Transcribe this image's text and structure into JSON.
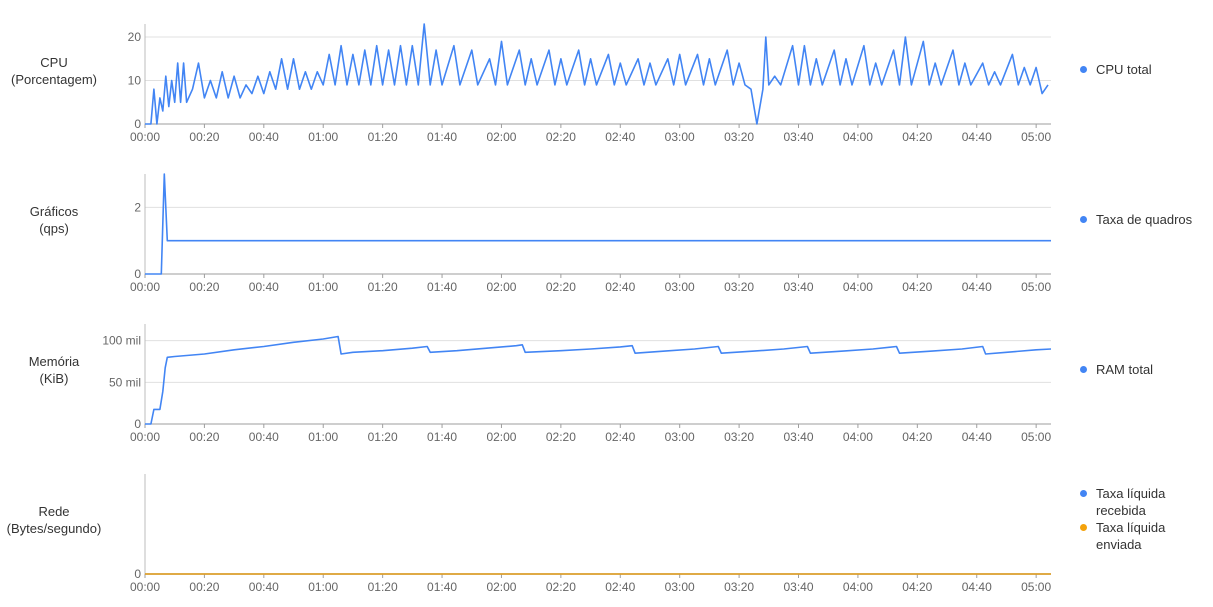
{
  "charts": [
    {
      "key": "cpu",
      "label_lines": [
        "CPU",
        "(Porcentagem)"
      ],
      "legend": [
        {
          "name": "CPU total",
          "color": "#4285f4"
        }
      ],
      "ymax": 23,
      "yticks": [
        {
          "value": 0,
          "label": "0"
        },
        {
          "value": 10,
          "label": "10"
        },
        {
          "value": 20,
          "label": "20"
        }
      ]
    },
    {
      "key": "graphics",
      "label_lines": [
        "Gráficos",
        "(qps)"
      ],
      "legend": [
        {
          "name": "Taxa de quadros",
          "color": "#4285f4"
        }
      ],
      "ymax": 3,
      "yticks": [
        {
          "value": 0,
          "label": "0"
        },
        {
          "value": 2,
          "label": "2"
        }
      ]
    },
    {
      "key": "memory",
      "label_lines": [
        "Memória",
        "(KiB)"
      ],
      "legend": [
        {
          "name": "RAM total",
          "color": "#4285f4"
        }
      ],
      "ymax": 240,
      "yticks": [
        {
          "value": 0,
          "label": "0"
        },
        {
          "value": 100,
          "label": "50 mil"
        },
        {
          "value": 200,
          "label": "100 mil"
        }
      ]
    },
    {
      "key": "network",
      "label_lines": [
        "Rede",
        "(Bytes/segundo)"
      ],
      "legend": [
        {
          "name": "Taxa líquida recebida",
          "color": "#4285f4"
        },
        {
          "name": "Taxa líquida enviada",
          "color": "#f4a20b"
        }
      ],
      "ymax": 1,
      "yticks": [
        {
          "value": 0,
          "label": "0"
        }
      ]
    }
  ],
  "x_ticks": [
    "00:00",
    "00:20",
    "00:40",
    "01:00",
    "01:20",
    "01:40",
    "02:00",
    "02:20",
    "02:40",
    "03:00",
    "03:20",
    "03:40",
    "04:00",
    "04:20",
    "04:40",
    "05:00"
  ],
  "chart_data": [
    {
      "type": "line",
      "ylabel": "CPU (Porcentagem)",
      "x_range_minutes": [
        0,
        305
      ],
      "ylim": [
        0,
        23
      ],
      "series": [
        {
          "name": "CPU total",
          "color": "#4285f4",
          "points": [
            [
              0,
              0
            ],
            [
              2,
              0
            ],
            [
              3,
              8
            ],
            [
              4,
              0
            ],
            [
              5,
              6
            ],
            [
              6,
              3
            ],
            [
              7,
              11
            ],
            [
              8,
              4
            ],
            [
              9,
              10
            ],
            [
              10,
              5
            ],
            [
              11,
              14
            ],
            [
              12,
              5
            ],
            [
              13,
              14
            ],
            [
              14,
              5
            ],
            [
              16,
              8
            ],
            [
              18,
              14
            ],
            [
              20,
              6
            ],
            [
              22,
              10
            ],
            [
              24,
              6
            ],
            [
              26,
              12
            ],
            [
              28,
              6
            ],
            [
              30,
              11
            ],
            [
              32,
              6
            ],
            [
              34,
              9
            ],
            [
              36,
              7
            ],
            [
              38,
              11
            ],
            [
              40,
              7
            ],
            [
              42,
              12
            ],
            [
              44,
              8
            ],
            [
              46,
              15
            ],
            [
              48,
              8
            ],
            [
              50,
              15
            ],
            [
              52,
              8
            ],
            [
              54,
              12
            ],
            [
              56,
              8
            ],
            [
              58,
              12
            ],
            [
              60,
              9
            ],
            [
              62,
              16
            ],
            [
              64,
              9
            ],
            [
              66,
              18
            ],
            [
              68,
              9
            ],
            [
              70,
              16
            ],
            [
              72,
              9
            ],
            [
              74,
              17
            ],
            [
              76,
              9
            ],
            [
              78,
              18
            ],
            [
              80,
              9
            ],
            [
              82,
              17
            ],
            [
              84,
              9
            ],
            [
              86,
              18
            ],
            [
              88,
              9
            ],
            [
              90,
              18
            ],
            [
              92,
              9
            ],
            [
              94,
              23
            ],
            [
              96,
              9
            ],
            [
              98,
              17
            ],
            [
              100,
              9
            ],
            [
              104,
              18
            ],
            [
              106,
              9
            ],
            [
              110,
              17
            ],
            [
              112,
              9
            ],
            [
              116,
              15
            ],
            [
              118,
              9
            ],
            [
              120,
              19
            ],
            [
              122,
              9
            ],
            [
              126,
              17
            ],
            [
              128,
              9
            ],
            [
              130,
              15
            ],
            [
              132,
              9
            ],
            [
              136,
              17
            ],
            [
              138,
              9
            ],
            [
              140,
              15
            ],
            [
              142,
              9
            ],
            [
              146,
              17
            ],
            [
              148,
              9
            ],
            [
              150,
              15
            ],
            [
              152,
              9
            ],
            [
              156,
              16
            ],
            [
              158,
              9
            ],
            [
              160,
              14
            ],
            [
              162,
              9
            ],
            [
              166,
              15
            ],
            [
              168,
              9
            ],
            [
              170,
              14
            ],
            [
              172,
              9
            ],
            [
              176,
              15
            ],
            [
              178,
              9
            ],
            [
              180,
              16
            ],
            [
              182,
              9
            ],
            [
              186,
              16
            ],
            [
              188,
              9
            ],
            [
              190,
              15
            ],
            [
              192,
              9
            ],
            [
              196,
              17
            ],
            [
              198,
              9
            ],
            [
              200,
              14
            ],
            [
              202,
              9
            ],
            [
              204,
              8
            ],
            [
              206,
              0
            ],
            [
              208,
              8
            ],
            [
              209,
              20
            ],
            [
              210,
              9
            ],
            [
              212,
              11
            ],
            [
              214,
              9
            ],
            [
              218,
              18
            ],
            [
              220,
              9
            ],
            [
              222,
              18
            ],
            [
              224,
              9
            ],
            [
              226,
              15
            ],
            [
              228,
              9
            ],
            [
              232,
              17
            ],
            [
              234,
              9
            ],
            [
              236,
              15
            ],
            [
              238,
              9
            ],
            [
              242,
              18
            ],
            [
              244,
              9
            ],
            [
              246,
              14
            ],
            [
              248,
              9
            ],
            [
              252,
              17
            ],
            [
              254,
              9
            ],
            [
              256,
              20
            ],
            [
              258,
              9
            ],
            [
              262,
              19
            ],
            [
              264,
              9
            ],
            [
              266,
              14
            ],
            [
              268,
              9
            ],
            [
              272,
              17
            ],
            [
              274,
              9
            ],
            [
              276,
              14
            ],
            [
              278,
              9
            ],
            [
              282,
              14
            ],
            [
              284,
              9
            ],
            [
              286,
              12
            ],
            [
              288,
              9
            ],
            [
              292,
              16
            ],
            [
              294,
              9
            ],
            [
              296,
              13
            ],
            [
              298,
              9
            ],
            [
              300,
              13
            ],
            [
              302,
              7
            ],
            [
              304,
              9
            ]
          ]
        }
      ]
    },
    {
      "type": "line",
      "ylabel": "Gráficos (qps)",
      "x_range_minutes": [
        0,
        305
      ],
      "ylim": [
        0,
        3
      ],
      "series": [
        {
          "name": "Taxa de quadros",
          "color": "#4285f4",
          "points": [
            [
              0,
              0
            ],
            [
              5.5,
              0
            ],
            [
              6.5,
              3
            ],
            [
              7.5,
              1
            ],
            [
              305,
              1
            ]
          ]
        }
      ]
    },
    {
      "type": "line",
      "ylabel": "Memória (KiB)",
      "x_range_minutes": [
        0,
        305
      ],
      "ylim": [
        0,
        240
      ],
      "series": [
        {
          "name": "RAM total",
          "color": "#4285f4",
          "points": [
            [
              0,
              0
            ],
            [
              2,
              0
            ],
            [
              3,
              35
            ],
            [
              5,
              35
            ],
            [
              6,
              78
            ],
            [
              6.8,
              135
            ],
            [
              7.5,
              160
            ],
            [
              10,
              162
            ],
            [
              20,
              168
            ],
            [
              30,
              178
            ],
            [
              40,
              186
            ],
            [
              50,
              196
            ],
            [
              60,
              204
            ],
            [
              65,
              210
            ],
            [
              66,
              168
            ],
            [
              70,
              172
            ],
            [
              80,
              176
            ],
            [
              90,
              182
            ],
            [
              95,
              186
            ],
            [
              96,
              172
            ],
            [
              105,
              176
            ],
            [
              115,
              182
            ],
            [
              125,
              188
            ],
            [
              127,
              190
            ],
            [
              128,
              172
            ],
            [
              140,
              176
            ],
            [
              150,
              180
            ],
            [
              160,
              185
            ],
            [
              164,
              188
            ],
            [
              165,
              170
            ],
            [
              175,
              175
            ],
            [
              185,
              180
            ],
            [
              193,
              186
            ],
            [
              194,
              170
            ],
            [
              205,
              175
            ],
            [
              215,
              180
            ],
            [
              223,
              186
            ],
            [
              224,
              170
            ],
            [
              235,
              175
            ],
            [
              245,
              180
            ],
            [
              253,
              186
            ],
            [
              254,
              170
            ],
            [
              265,
              175
            ],
            [
              275,
              180
            ],
            [
              282,
              186
            ],
            [
              283,
              168
            ],
            [
              290,
              172
            ],
            [
              300,
              178
            ],
            [
              305,
              180
            ]
          ]
        }
      ]
    },
    {
      "type": "line",
      "ylabel": "Rede (Bytes/segundo)",
      "x_range_minutes": [
        0,
        305
      ],
      "ylim": [
        0,
        1
      ],
      "series": [
        {
          "name": "Taxa líquida recebida",
          "color": "#4285f4",
          "points": [
            [
              0,
              0
            ],
            [
              305,
              0
            ]
          ]
        },
        {
          "name": "Taxa líquida enviada",
          "color": "#f4a20b",
          "points": [
            [
              0,
              0
            ],
            [
              305,
              0
            ]
          ]
        }
      ]
    }
  ]
}
